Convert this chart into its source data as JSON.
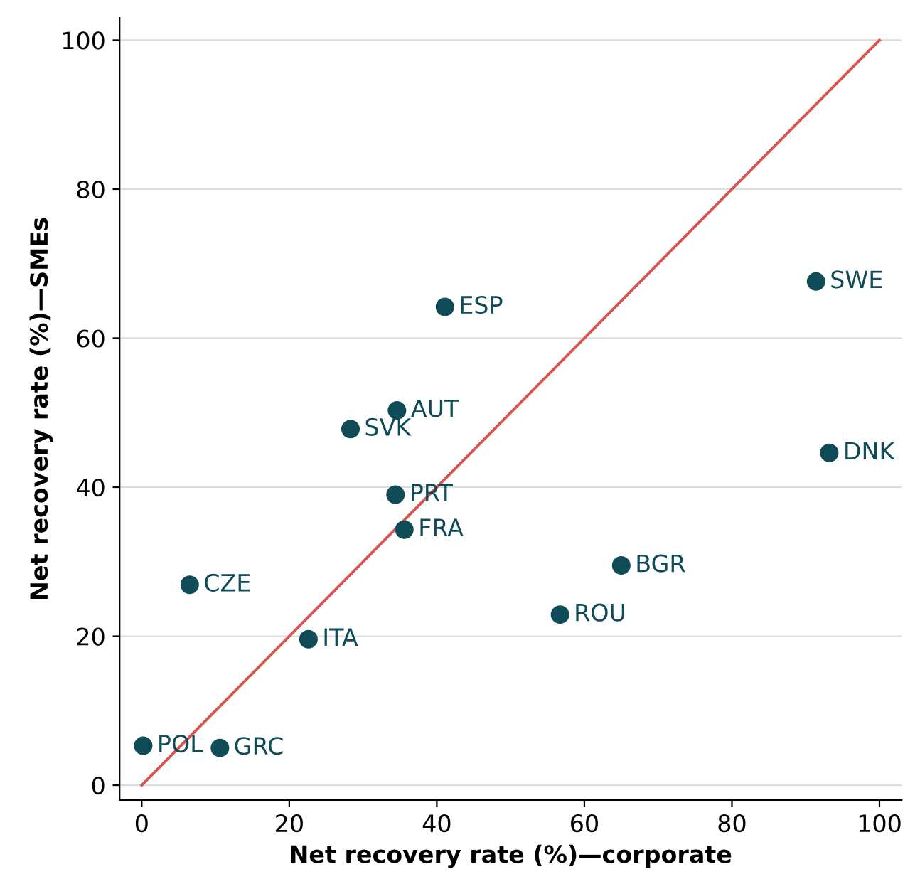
{
  "chart_data": {
    "type": "scatter",
    "xlabel": "Net recovery rate (%)—corporate",
    "ylabel": "Net recovery rate (%)—SMEs",
    "xlim": [
      -3,
      103
    ],
    "ylim": [
      -2,
      103
    ],
    "xticks": [
      0,
      20,
      40,
      60,
      80,
      100
    ],
    "yticks": [
      0,
      20,
      40,
      60,
      80,
      100
    ],
    "grid": "y",
    "series": [
      {
        "marker": "circle",
        "color": "#0f4c57",
        "x": [
          0.2,
          10.6,
          6.5,
          22.6,
          28.3,
          34.6,
          34.4,
          35.6,
          41.1,
          56.7,
          65.0,
          91.4,
          93.2
        ],
        "values": [
          5.3,
          5.0,
          26.9,
          19.6,
          47.8,
          50.3,
          39.0,
          34.3,
          64.2,
          22.9,
          29.5,
          67.6,
          44.6
        ]
      },
      {
        "type": "line",
        "color": "#d9534f",
        "x": [
          0,
          100
        ],
        "values": [
          0,
          100
        ]
      }
    ],
    "annotations": [
      {
        "text": "POL",
        "x": 0.2,
        "y": 5.3
      },
      {
        "text": "GRC",
        "x": 10.6,
        "y": 5.0
      },
      {
        "text": "CZE",
        "x": 6.5,
        "y": 26.9
      },
      {
        "text": "ITA",
        "x": 22.6,
        "y": 19.6
      },
      {
        "text": "SVK",
        "x": 28.3,
        "y": 47.8
      },
      {
        "text": "AUT",
        "x": 34.6,
        "y": 50.3
      },
      {
        "text": "PRT",
        "x": 34.4,
        "y": 39.0
      },
      {
        "text": "FRA",
        "x": 35.6,
        "y": 34.3
      },
      {
        "text": "ESP",
        "x": 41.1,
        "y": 64.2
      },
      {
        "text": "ROU",
        "x": 56.7,
        "y": 22.9
      },
      {
        "text": "BGR",
        "x": 65.0,
        "y": 29.5
      },
      {
        "text": "SWE",
        "x": 91.4,
        "y": 67.6
      },
      {
        "text": "DNK",
        "x": 93.2,
        "y": 44.6
      }
    ]
  }
}
